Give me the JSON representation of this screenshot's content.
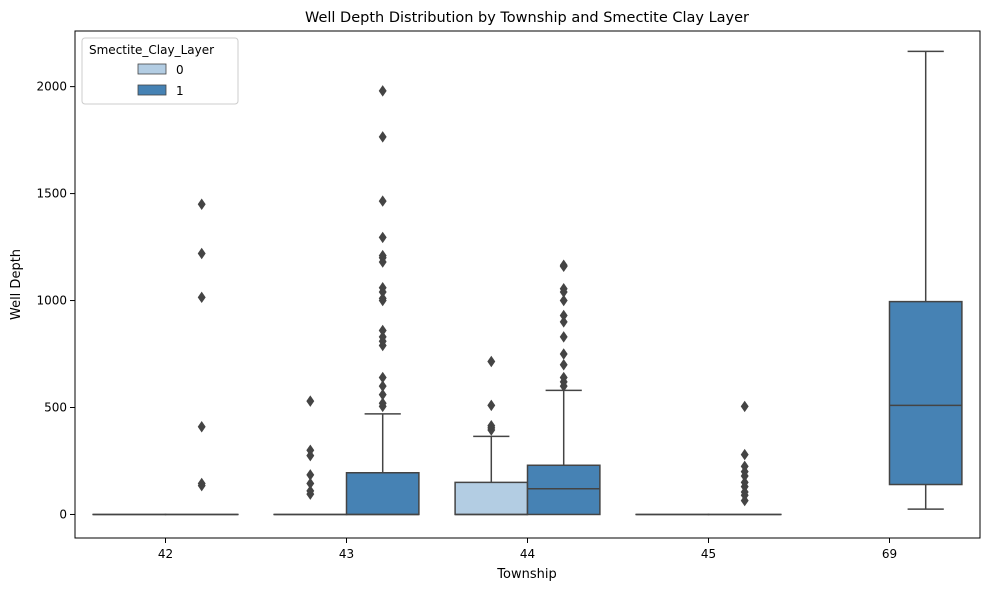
{
  "chart_data": {
    "type": "boxplot",
    "title": "Well Depth Distribution by Township and Smectite Clay Layer",
    "xlabel": "Township",
    "ylabel": "Well Depth",
    "categories": [
      "42",
      "43",
      "44",
      "45",
      "69"
    ],
    "ylim": [
      -110,
      2260
    ],
    "yticks": [
      0,
      500,
      1000,
      1500,
      2000
    ],
    "grid": false,
    "legend": {
      "title": "Smectite_Clay_Layer",
      "placement": "top-left",
      "entries": [
        {
          "label": "0",
          "color": "#b3cde3"
        },
        {
          "label": "1",
          "color": "#4682b4"
        }
      ]
    },
    "series": [
      {
        "name": "0",
        "color": "#b3cde3",
        "boxes": [
          {
            "category": "42",
            "q1": 0,
            "median": 0,
            "q3": 0,
            "whisker_low": 0,
            "whisker_high": 0,
            "outliers": []
          },
          {
            "category": "43",
            "q1": 0,
            "median": 0,
            "q3": 0,
            "whisker_low": 0,
            "whisker_high": 0,
            "outliers": []
          },
          {
            "category": "44",
            "q1": 0,
            "median": 0,
            "q3": 150,
            "whisker_low": 0,
            "whisker_high": 365,
            "outliers": [
              395,
              405,
              415,
              510,
              715
            ]
          },
          {
            "category": "45",
            "q1": 0,
            "median": 0,
            "q3": 0,
            "whisker_low": 0,
            "whisker_high": 0,
            "outliers": []
          }
        ]
      },
      {
        "name": "1",
        "color": "#4682b4",
        "boxes": [
          {
            "category": "42",
            "q1": 0,
            "median": 0,
            "q3": 0,
            "whisker_low": 0,
            "whisker_high": 0,
            "outliers": [
              135,
              145,
              410,
              1015,
              1220,
              1450
            ]
          },
          {
            "category": "43",
            "q1": 0,
            "median": 0,
            "q3": 195,
            "whisker_low": 0,
            "whisker_high": 470,
            "outliers": [
              505,
              520,
              560,
              600,
              640,
              790,
              810,
              830,
              860,
              1000,
              1010,
              1040,
              1060,
              1180,
              1200,
              1210,
              1295,
              1465,
              1765,
              1980
            ]
          },
          {
            "category": "44",
            "q1": 0,
            "median": 120,
            "q3": 230,
            "whisker_low": 0,
            "whisker_high": 580,
            "outliers": [
              600,
              620,
              640,
              700,
              750,
              830,
              900,
              930,
              1000,
              1040,
              1055,
              1160,
              1165
            ]
          },
          {
            "category": "45",
            "q1": 0,
            "median": 0,
            "q3": 0,
            "whisker_low": 0,
            "whisker_high": 0,
            "outliers": [
              65,
              90,
              105,
              130,
              150,
              180,
              200,
              225,
              280,
              505
            ]
          },
          {
            "category": "69",
            "q1": 140,
            "median": 510,
            "q3": 995,
            "whisker_low": 25,
            "whisker_high": 2165,
            "outliers": []
          }
        ]
      }
    ],
    "extra_marks": [
      {
        "series": "0",
        "category": "43",
        "outliers": [
          95,
          110,
          145,
          185,
          275,
          300,
          530
        ]
      }
    ]
  }
}
